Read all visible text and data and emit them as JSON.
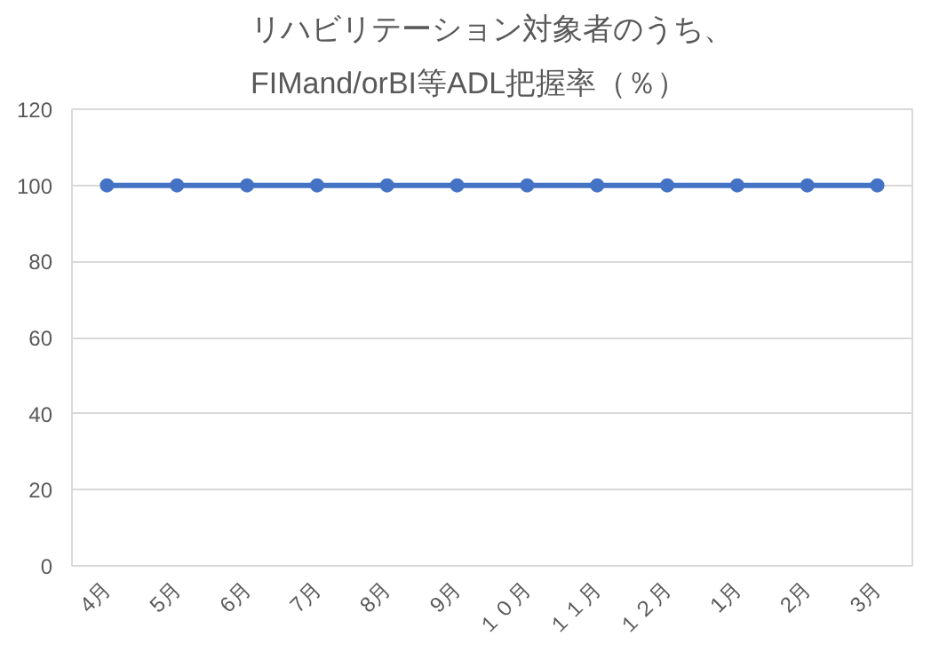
{
  "chart_data": {
    "type": "line",
    "title": "リハビリテーション対象者のうち、\nFIMand/orBI等ADL把握率（％）",
    "categories": [
      "4月",
      "5月",
      "6月",
      "7月",
      "8月",
      "9月",
      "１０月",
      "１１月",
      "１２月",
      "1月",
      "2月",
      "3月"
    ],
    "series": [
      {
        "color": "#4472c4",
        "values": [
          100,
          100,
          100,
          100,
          100,
          100,
          100,
          100,
          100,
          100,
          100,
          100
        ]
      }
    ],
    "ylim": [
      0,
      120
    ],
    "yticks": [
      0,
      20,
      40,
      60,
      80,
      100,
      120
    ],
    "grid": "y",
    "marker": "circle",
    "line_style": "solid"
  }
}
